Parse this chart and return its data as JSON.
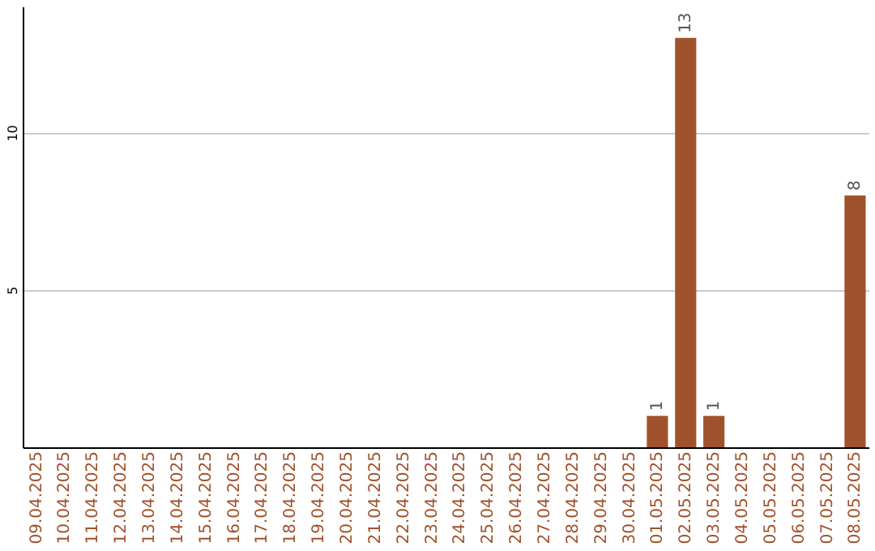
{
  "chart_data": {
    "type": "bar",
    "categories": [
      "09.04.2025",
      "10.04.2025",
      "11.04.2025",
      "12.04.2025",
      "13.04.2025",
      "14.04.2025",
      "15.04.2025",
      "16.04.2025",
      "17.04.2025",
      "18.04.2025",
      "19.04.2025",
      "20.04.2025",
      "21.04.2025",
      "22.04.2025",
      "23.04.2025",
      "24.04.2025",
      "25.04.2025",
      "26.04.2025",
      "27.04.2025",
      "28.04.2025",
      "29.04.2025",
      "30.04.2025",
      "01.05.2025",
      "02.05.2025",
      "03.05.2025",
      "04.05.2025",
      "05.05.2025",
      "06.05.2025",
      "07.05.2025",
      "08.05.2025"
    ],
    "values": [
      0,
      0,
      0,
      0,
      0,
      0,
      0,
      0,
      0,
      0,
      0,
      0,
      0,
      0,
      0,
      0,
      0,
      0,
      0,
      0,
      0,
      0,
      1,
      13,
      1,
      0,
      0,
      0,
      0,
      8
    ],
    "value_labels": [
      null,
      null,
      null,
      null,
      null,
      null,
      null,
      null,
      null,
      null,
      null,
      null,
      null,
      null,
      null,
      null,
      null,
      null,
      null,
      null,
      null,
      null,
      "1",
      "13",
      "1",
      null,
      null,
      null,
      null,
      "8"
    ],
    "color": "#a0522d",
    "ylim": [
      0,
      14
    ],
    "yticks": [
      5,
      10
    ],
    "grid": "y"
  }
}
